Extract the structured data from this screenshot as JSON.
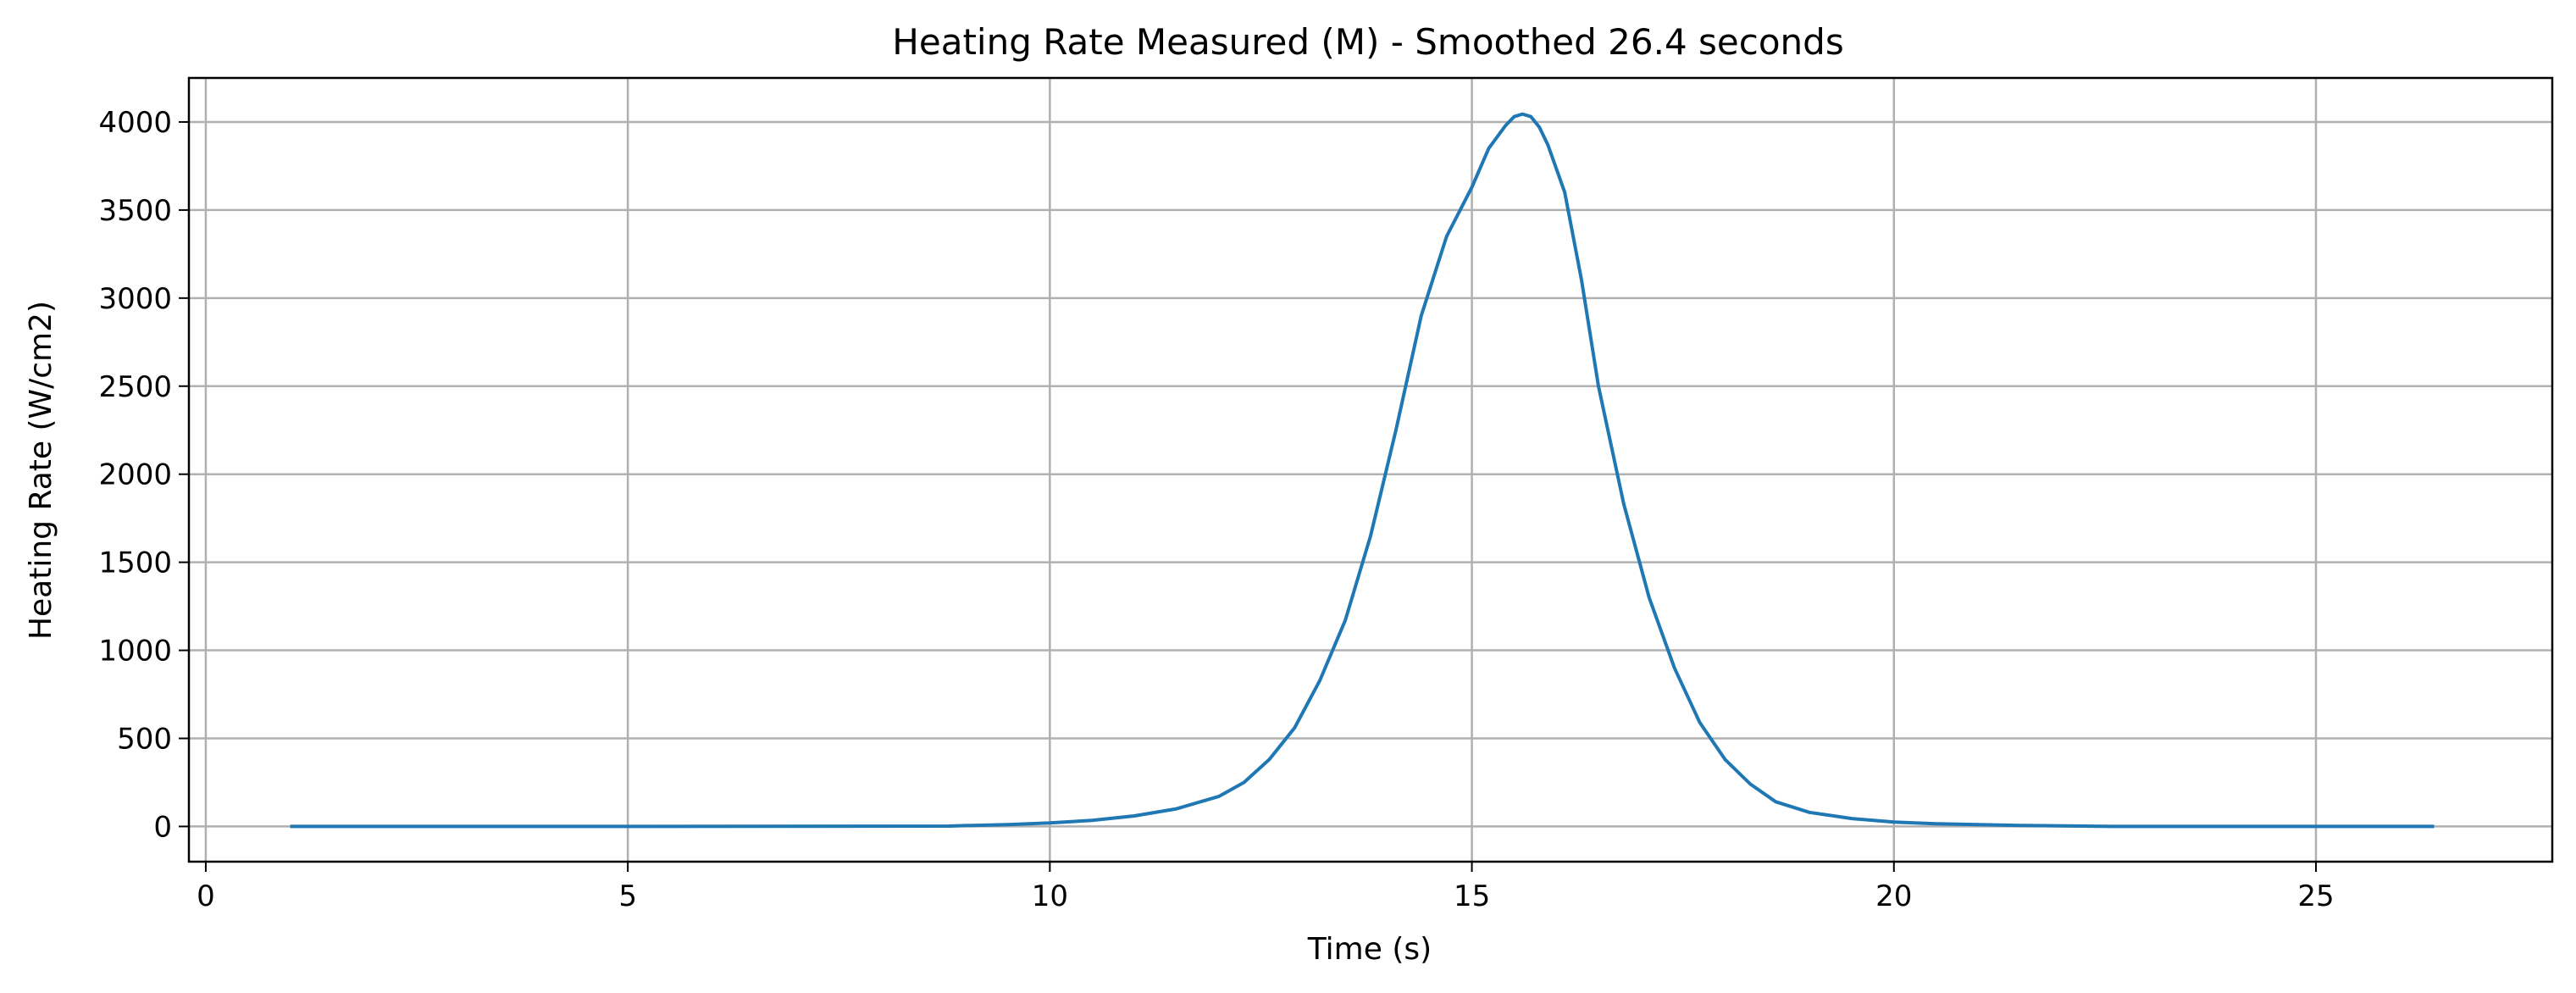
{
  "chart_data": {
    "type": "line",
    "title": "Heating Rate Measured (M) - Smoothed 26.4 seconds",
    "xlabel": "Time (s)",
    "ylabel": "Heating Rate (W/cm2)",
    "xlim": [
      -0.2,
      27.8
    ],
    "ylim": [
      -200,
      4250
    ],
    "xticks": [
      0,
      5,
      10,
      15,
      20,
      25
    ],
    "yticks": [
      0,
      500,
      1000,
      1500,
      2000,
      2500,
      3000,
      3500,
      4000
    ],
    "grid": true,
    "line_color": "#1f77b4",
    "series": [
      {
        "x": [
          1.0,
          5.0,
          8.8,
          9.0,
          9.5,
          10.0,
          10.5,
          11.0,
          11.5,
          12.0,
          12.3,
          12.6,
          12.9,
          13.2,
          13.5,
          13.8,
          14.1,
          14.4,
          14.7,
          15.0,
          15.2,
          15.4,
          15.5,
          15.6,
          15.7,
          15.8,
          15.9,
          16.1,
          16.3,
          16.5,
          16.8,
          17.1,
          17.4,
          17.7,
          18.0,
          18.3,
          18.6,
          19.0,
          19.5,
          20.0,
          20.5,
          21.0,
          21.5,
          22.0,
          22.6,
          24.0,
          26.4
        ],
        "y": [
          0,
          0,
          2,
          5,
          10,
          20,
          35,
          60,
          100,
          170,
          250,
          380,
          560,
          830,
          1170,
          1650,
          2250,
          2900,
          3350,
          3630,
          3850,
          3980,
          4030,
          4045,
          4030,
          3970,
          3870,
          3600,
          3100,
          2500,
          1830,
          1300,
          900,
          590,
          380,
          240,
          140,
          80,
          45,
          25,
          15,
          10,
          6,
          3,
          0,
          0,
          0
        ]
      }
    ]
  }
}
